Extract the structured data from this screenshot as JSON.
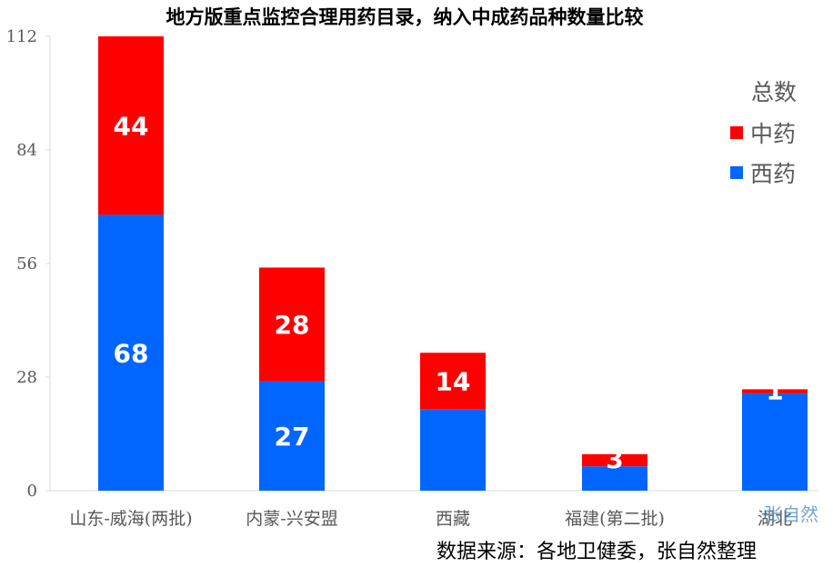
{
  "chart_data": {
    "type": "bar",
    "stacked": true,
    "title": "地方版重点监控合理用药目录，纳入中成药品种数量比较",
    "categories": [
      "山东-威海(两批)",
      "内蒙-兴安盟",
      "西藏",
      "福建(第二批)",
      "湖北"
    ],
    "series": [
      {
        "name": "西药",
        "color": "#0066ff",
        "values": [
          68,
          27,
          20,
          6,
          24
        ],
        "labels": [
          "68",
          "27",
          "",
          "",
          ""
        ]
      },
      {
        "name": "中药",
        "color": "#ff0000",
        "values": [
          44,
          28,
          14,
          3,
          1
        ],
        "labels": [
          "44",
          "28",
          "14",
          "3",
          "1"
        ]
      }
    ],
    "ylim": [
      0,
      112
    ],
    "yticks": [
      "0",
      "28",
      "56",
      "84",
      "112"
    ],
    "ytick_values": [
      0,
      28,
      56,
      84,
      112
    ],
    "legend_title": "总数",
    "legend_position": "right",
    "grid": false
  },
  "footer": {
    "source": "数据来源：各地卫健委，张自然整理",
    "watermark": "张自然"
  }
}
